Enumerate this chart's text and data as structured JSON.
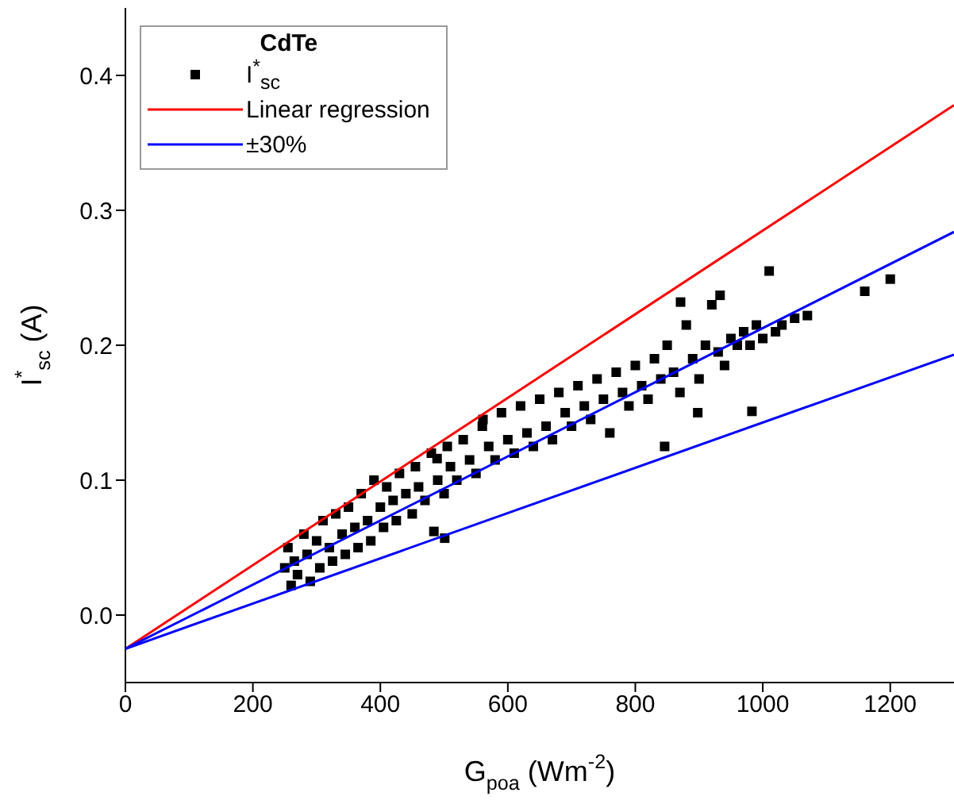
{
  "chart_data": {
    "type": "scatter",
    "xlabel": "G$_{poa}$ (Wm$^{-2}$)",
    "ylabel": "I$^{*}$$_{sc}$ (A)",
    "legend_title": "CdTe",
    "legend": "top left",
    "marker": "square",
    "xlim": [
      0,
      1300
    ],
    "xticks": [
      0,
      200,
      400,
      600,
      800,
      1000,
      1200
    ],
    "ylim": [
      -0.05,
      0.45
    ],
    "yticks": [
      {
        "value": 0,
        "label": "0.0"
      },
      0.1,
      0.2,
      0.3,
      0.4
    ],
    "series": [
      {
        "name": "I$^{*}$$_{sc}$",
        "color": "#000000",
        "x": [
          250,
          255,
          260,
          265,
          270,
          280,
          285,
          290,
          300,
          305,
          310,
          320,
          325,
          330,
          340,
          345,
          350,
          360,
          365,
          370,
          380,
          385,
          390,
          400,
          405,
          410,
          420,
          425,
          430,
          440,
          450,
          455,
          460,
          470,
          480,
          484,
          489,
          490,
          500,
          501,
          505,
          510,
          520,
          530,
          540,
          550,
          560,
          561,
          570,
          580,
          590,
          600,
          610,
          620,
          630,
          640,
          650,
          660,
          670,
          680,
          690,
          700,
          710,
          720,
          730,
          740,
          750,
          760,
          770,
          780,
          790,
          800,
          810,
          820,
          830,
          840,
          846,
          850,
          860,
          870,
          871,
          880,
          890,
          898,
          900,
          910,
          920,
          930,
          933,
          940,
          950,
          960,
          970,
          980,
          983,
          990,
          1000,
          1010,
          1020,
          1030,
          1050,
          1070,
          1160,
          1200
        ],
        "values": [
          0.035,
          0.05,
          0.022,
          0.04,
          0.03,
          0.06,
          0.045,
          0.025,
          0.055,
          0.035,
          0.07,
          0.05,
          0.04,
          0.075,
          0.06,
          0.045,
          0.08,
          0.065,
          0.05,
          0.09,
          0.07,
          0.055,
          0.1,
          0.08,
          0.065,
          0.095,
          0.085,
          0.07,
          0.105,
          0.09,
          0.075,
          0.11,
          0.095,
          0.085,
          0.12,
          0.062,
          0.116,
          0.1,
          0.09,
          0.057,
          0.125,
          0.11,
          0.1,
          0.13,
          0.115,
          0.105,
          0.14,
          0.145,
          0.125,
          0.115,
          0.15,
          0.13,
          0.12,
          0.155,
          0.135,
          0.125,
          0.16,
          0.14,
          0.13,
          0.165,
          0.15,
          0.14,
          0.17,
          0.155,
          0.145,
          0.175,
          0.16,
          0.135,
          0.18,
          0.165,
          0.155,
          0.185,
          0.17,
          0.16,
          0.19,
          0.175,
          0.125,
          0.2,
          0.18,
          0.165,
          0.232,
          0.215,
          0.19,
          0.15,
          0.175,
          0.2,
          0.23,
          0.195,
          0.237,
          0.185,
          0.205,
          0.2,
          0.21,
          0.2,
          0.151,
          0.215,
          0.205,
          0.255,
          0.21,
          0.215,
          0.22,
          0.222,
          0.24,
          0.249
        ]
      },
      {
        "name": "Linear regression",
        "type": "line",
        "marker": "none",
        "color": "#ff0000",
        "x": [
          0,
          1300
        ],
        "values": [
          -0.025,
          0.378
        ]
      },
      {
        "name": "±30%",
        "type": "line",
        "marker": "none",
        "color": "#0000ff",
        "x": [
          0,
          1300
        ],
        "values": [
          -0.025,
          0.284
        ]
      },
      {
        "type": "line",
        "marker": "none",
        "color": "#0000ff",
        "x": [
          0,
          1300
        ],
        "values": [
          -0.025,
          0.193
        ]
      }
    ]
  }
}
